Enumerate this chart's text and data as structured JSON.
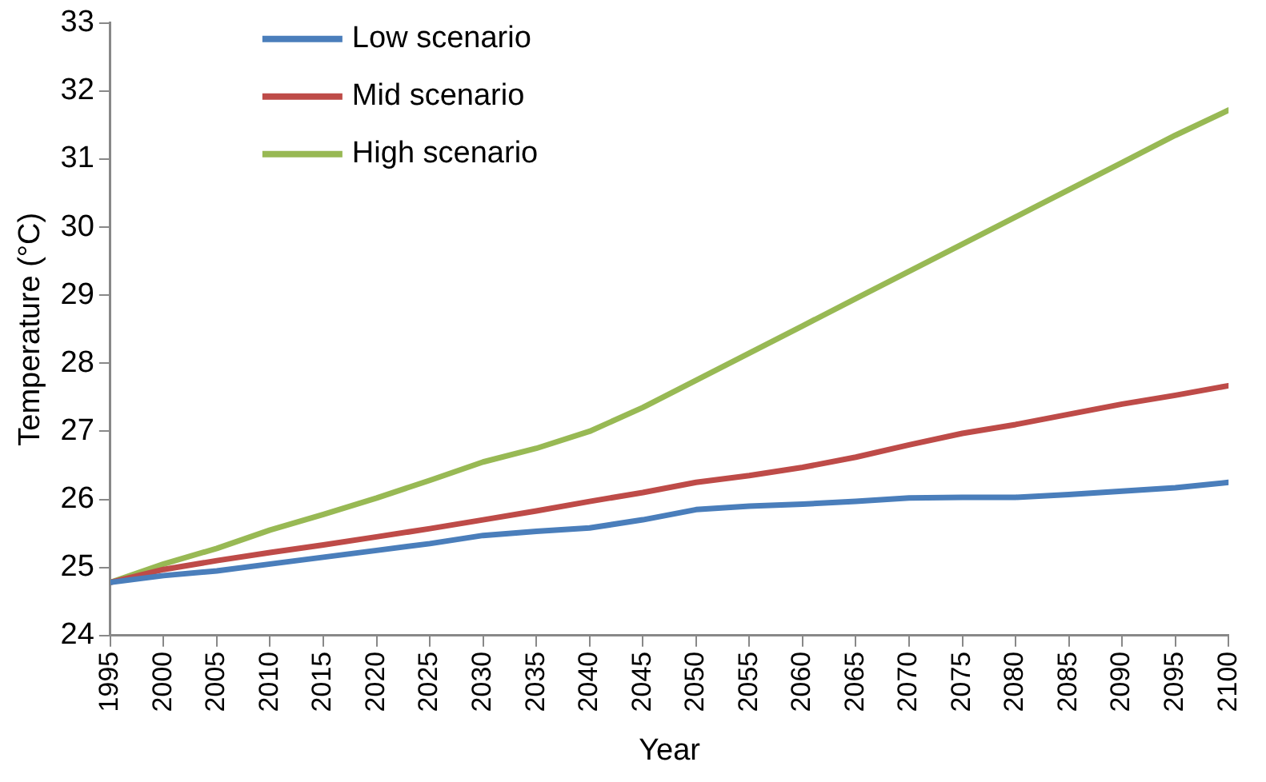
{
  "chart_data": {
    "type": "line",
    "xlabel": "Year",
    "ylabel": "Temperature (°C)",
    "x": [
      1995,
      2000,
      2005,
      2010,
      2015,
      2020,
      2025,
      2030,
      2035,
      2040,
      2045,
      2050,
      2055,
      2060,
      2065,
      2070,
      2075,
      2080,
      2085,
      2090,
      2095,
      2100
    ],
    "series": [
      {
        "name": "Low scenario",
        "color": "#4a7ebb",
        "values": [
          24.78,
          24.88,
          24.95,
          25.05,
          25.15,
          25.25,
          25.35,
          25.47,
          25.53,
          25.58,
          25.7,
          25.85,
          25.9,
          25.93,
          25.97,
          26.02,
          26.03,
          26.03,
          26.07,
          26.12,
          26.17,
          26.25
        ]
      },
      {
        "name": "Mid scenario",
        "color": "#be4b48",
        "values": [
          24.78,
          24.97,
          25.1,
          25.22,
          25.33,
          25.45,
          25.57,
          25.7,
          25.83,
          25.97,
          26.1,
          26.25,
          26.35,
          26.47,
          26.62,
          26.8,
          26.97,
          27.1,
          27.25,
          27.4,
          27.53,
          27.67
        ]
      },
      {
        "name": "High scenario",
        "color": "#98b954",
        "values": [
          24.78,
          25.05,
          25.28,
          25.55,
          25.78,
          26.02,
          26.28,
          26.55,
          26.75,
          27.0,
          27.35,
          27.75,
          28.15,
          28.55,
          28.95,
          29.35,
          29.75,
          30.15,
          30.55,
          30.95,
          31.35,
          31.72
        ]
      }
    ],
    "xlim": [
      1995,
      2100
    ],
    "xticks": [
      1995,
      2000,
      2005,
      2010,
      2015,
      2020,
      2025,
      2030,
      2035,
      2040,
      2045,
      2050,
      2055,
      2060,
      2065,
      2070,
      2075,
      2080,
      2085,
      2090,
      2095,
      2100
    ],
    "ylim": [
      24,
      33
    ],
    "yticks": [
      24,
      25,
      26,
      27,
      28,
      29,
      30,
      31,
      32,
      33
    ],
    "grid": false,
    "legend": "top left",
    "marker": "none",
    "line_style": "solid"
  }
}
